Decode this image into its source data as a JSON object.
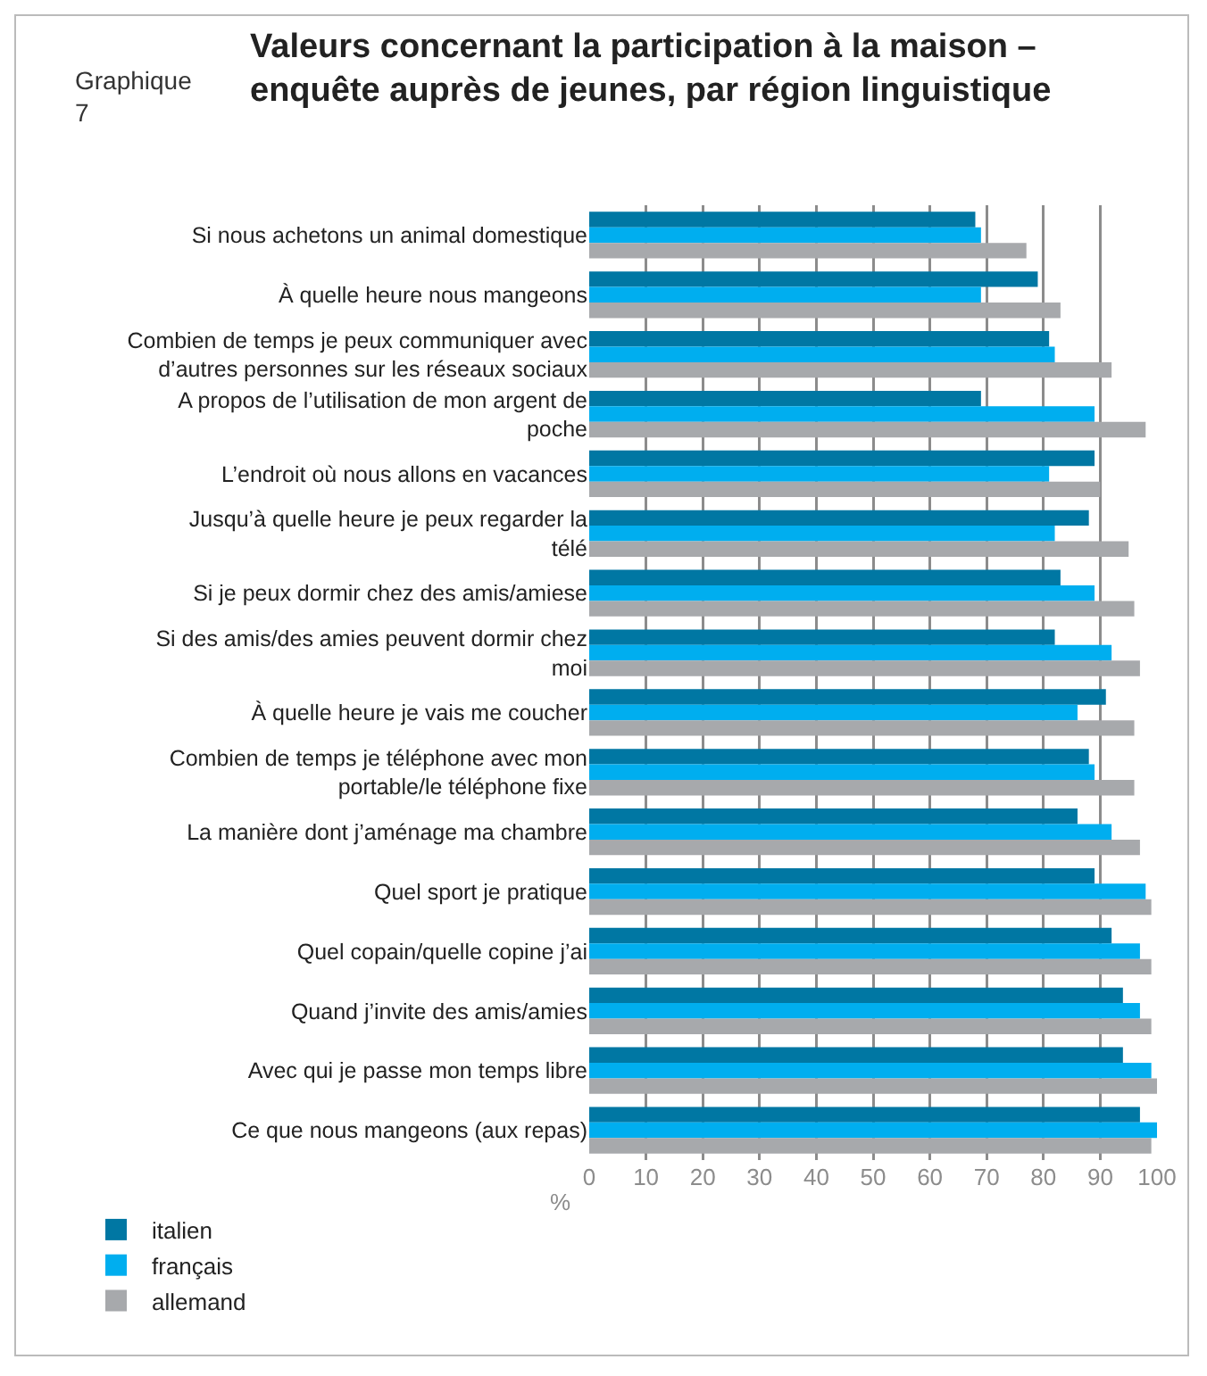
{
  "chart_data": {
    "type": "bar",
    "orientation": "horizontal",
    "title": "Valeurs concernant la participation à la maison – enquête auprès de jeunes, par région linguistique",
    "annotations": [
      "Graphique 7"
    ],
    "xlabel": "%",
    "categories": [
      "Si nous achetons un animal domestique",
      "À quelle heure nous mangeons",
      "Combien de temps je peux communiquer avec d’autres personnes sur les réseaux sociaux",
      "A propos de l’utilisation de mon argent de poche",
      "L’endroit où nous allons en vacances",
      "Jusqu’à quelle heure je peux regarder la télé",
      "Si je peux dormir chez des amis/amiese",
      "Si des amis/des amies peuvent dormir chez moi",
      "À quelle heure je vais me coucher",
      "Combien de temps je téléphone avec mon portable/le téléphone fixe",
      "La manière dont j’aménage ma chambre",
      "Quel sport je pratique",
      "Quel copain/quelle copine j’ai",
      "Quand j’invite des amis/amies",
      "Avec qui je passe mon temps libre",
      "Ce que nous mangeons (aux repas)"
    ],
    "series": [
      {
        "name": "italien",
        "color": "#0077a3",
        "values": [
          68,
          79,
          81,
          69,
          89,
          88,
          83,
          82,
          91,
          88,
          86,
          89,
          92,
          94,
          94,
          97
        ]
      },
      {
        "name": "français",
        "color": "#00aeef",
        "values": [
          69,
          69,
          82,
          89,
          81,
          82,
          89,
          92,
          86,
          89,
          92,
          98,
          97,
          97,
          99,
          100
        ]
      },
      {
        "name": "allemand",
        "color": "#a7a9ac",
        "values": [
          77,
          83,
          92,
          98,
          90,
          95,
          96,
          97,
          96,
          96,
          97,
          99,
          99,
          99,
          100,
          99
        ]
      }
    ],
    "xlim": [
      0,
      100
    ],
    "xticks": [
      0,
      10,
      20,
      30,
      40,
      50,
      60,
      70,
      80,
      90,
      100
    ],
    "grid": "x",
    "legend": "bottom left"
  }
}
